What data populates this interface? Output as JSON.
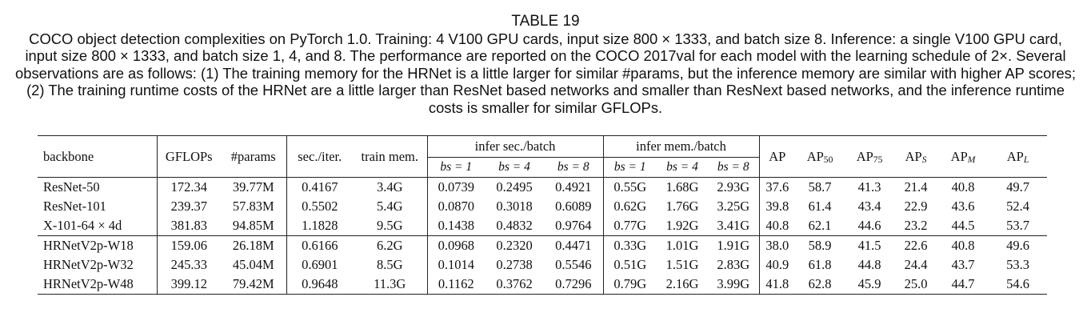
{
  "caption": {
    "title": "TABLE 19",
    "text": "COCO object detection complexities on PyTorch 1.0. Training: 4 V100 GPU cards, input size 800 × 1333, and batch size 8. Inference: a single V100 GPU card, input size 800 × 1333, and batch size 1, 4, and 8. The performance are reported on the COCO 2017val for each model with the learning schedule of 2×. Several observations are as follows: (1) The training memory for the HRNet is a little larger for similar #params, but the inference memory are similar with higher AP scores; (2) The training runtime costs of the HRNet are a little larger than ResNet based networks and smaller than ResNext based networks, and the inference runtime costs is smaller for similar GFLOPs."
  },
  "headers": {
    "backbone": "backbone",
    "gflops": "GFLOPs",
    "params": "#params",
    "sec_iter": "sec./iter.",
    "train_mem": "train mem.",
    "infer_sec": "infer sec./batch",
    "infer_mem": "infer mem./batch",
    "bs_labels": [
      "bs = 1",
      "bs = 4",
      "bs = 8"
    ],
    "ap": "AP",
    "ap50": {
      "base": "AP",
      "sub": "50"
    },
    "ap75": {
      "base": "AP",
      "sub": "75"
    },
    "aps": {
      "base": "AP",
      "sub": "S"
    },
    "apm": {
      "base": "AP",
      "sub": "M"
    },
    "apl": {
      "base": "AP",
      "sub": "L"
    }
  },
  "rows": [
    [
      "ResNet-50",
      "172.34",
      "39.77M",
      "0.4167",
      "3.4G",
      "0.0739",
      "0.2495",
      "0.4921",
      "0.55G",
      "1.68G",
      "2.93G",
      "37.6",
      "58.7",
      "41.3",
      "21.4",
      "40.8",
      "49.7"
    ],
    [
      "ResNet-101",
      "239.37",
      "57.83M",
      "0.5502",
      "5.4G",
      "0.0870",
      "0.3018",
      "0.6089",
      "0.62G",
      "1.76G",
      "3.25G",
      "39.8",
      "61.4",
      "43.4",
      "22.9",
      "43.6",
      "52.4"
    ],
    [
      "X-101-64 × 4d",
      "381.83",
      "94.85M",
      "1.1828",
      "9.5G",
      "0.1438",
      "0.4832",
      "0.9764",
      "0.77G",
      "1.92G",
      "3.41G",
      "40.8",
      "62.1",
      "44.6",
      "23.2",
      "44.5",
      "53.7"
    ],
    [
      "HRNetV2p-W18",
      "159.06",
      "26.18M",
      "0.6166",
      "6.2G",
      "0.0968",
      "0.2320",
      "0.4471",
      "0.33G",
      "1.01G",
      "1.91G",
      "38.0",
      "58.9",
      "41.5",
      "22.6",
      "40.8",
      "49.6"
    ],
    [
      "HRNetV2p-W32",
      "245.33",
      "45.04M",
      "0.6901",
      "8.5G",
      "0.1014",
      "0.2738",
      "0.5546",
      "0.51G",
      "1.51G",
      "2.83G",
      "40.9",
      "61.8",
      "44.8",
      "24.4",
      "43.7",
      "53.3"
    ],
    [
      "HRNetV2p-W48",
      "399.12",
      "79.42M",
      "0.9648",
      "11.3G",
      "0.1162",
      "0.3762",
      "0.7296",
      "0.79G",
      "2.16G",
      "3.99G",
      "41.8",
      "62.8",
      "45.9",
      "25.0",
      "44.7",
      "54.6"
    ]
  ]
}
